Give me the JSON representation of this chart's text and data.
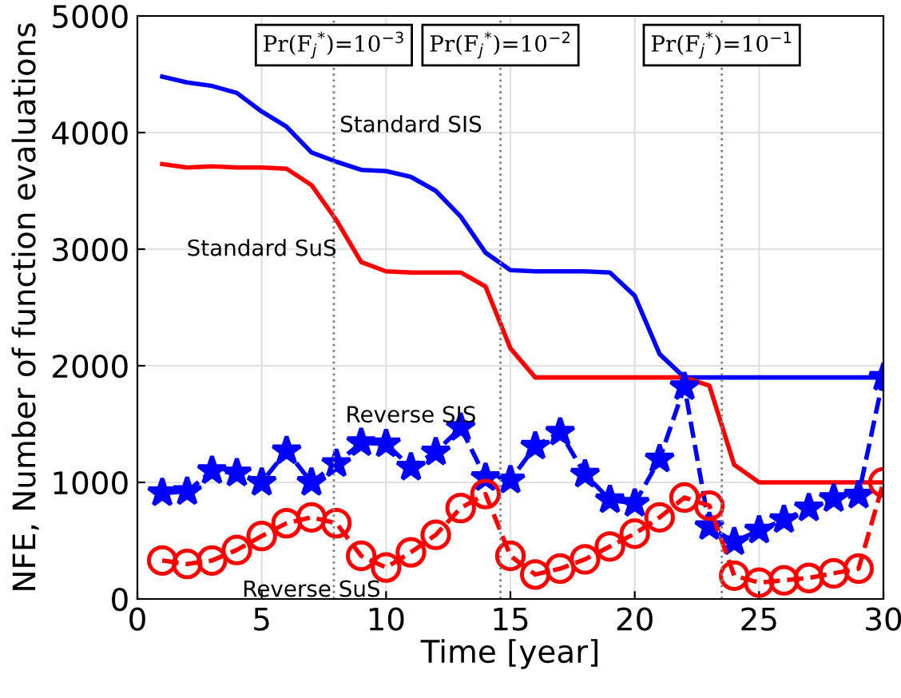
{
  "chart_data": {
    "type": "line",
    "xlabel": "Time [year]",
    "ylabel": "NFE, Number of function evaluations",
    "x": [
      1,
      2,
      3,
      4,
      5,
      6,
      7,
      8,
      9,
      10,
      11,
      12,
      13,
      14,
      15,
      16,
      17,
      18,
      19,
      20,
      21,
      22,
      23,
      24,
      25,
      26,
      27,
      28,
      29,
      30
    ],
    "series": [
      {
        "name": "Standard SIS",
        "color": "#0000ff",
        "line_style": "solid",
        "marker": "none",
        "values": [
          4480,
          4430,
          4400,
          4340,
          4180,
          4050,
          3830,
          3750,
          3680,
          3670,
          3620,
          3500,
          3280,
          2970,
          2820,
          2810,
          2810,
          2810,
          2800,
          2600,
          2100,
          1900,
          1900,
          1900,
          1900,
          1900,
          1900,
          1900,
          1900,
          1900
        ]
      },
      {
        "name": "Standard SuS",
        "color": "#ff0000",
        "line_style": "solid",
        "marker": "none",
        "values": [
          3730,
          3700,
          3710,
          3700,
          3700,
          3690,
          3550,
          3250,
          2890,
          2810,
          2800,
          2800,
          2800,
          2680,
          2150,
          1900,
          1900,
          1900,
          1900,
          1900,
          1900,
          1900,
          1830,
          1150,
          1000,
          1000,
          1000,
          1000,
          1000,
          1000
        ]
      },
      {
        "name": "Reverse SIS",
        "color": "#0000ff",
        "line_style": "dashed",
        "marker": "star",
        "values": [
          910,
          920,
          1100,
          1080,
          1000,
          1270,
          1000,
          1160,
          1340,
          1330,
          1130,
          1260,
          1470,
          1040,
          1020,
          1310,
          1430,
          1070,
          850,
          820,
          1200,
          1820,
          620,
          490,
          590,
          680,
          780,
          860,
          890,
          1900
        ]
      },
      {
        "name": "Reverse SuS",
        "color": "#ff0000",
        "line_style": "dashed",
        "marker": "circle",
        "values": [
          330,
          300,
          330,
          420,
          540,
          650,
          700,
          650,
          370,
          270,
          400,
          550,
          780,
          900,
          370,
          210,
          260,
          340,
          450,
          560,
          700,
          870,
          800,
          200,
          140,
          160,
          180,
          220,
          260,
          1000
        ]
      }
    ],
    "annotations": [
      "Pr(F$_{j}$$^{*}$)=10$^{−3}$",
      "Pr(F$_{j}$$^{*}$)=10$^{−2}$",
      "Pr(F$_{j}$$^{*}$)=10$^{−1}$"
    ],
    "ref_lines": [
      {
        "axis": "x",
        "value": 7.9,
        "color": "#808080",
        "line_style": "dotted"
      },
      {
        "axis": "x",
        "value": 14.6,
        "color": "#808080",
        "line_style": "dotted"
      },
      {
        "axis": "x",
        "value": 23.5,
        "color": "#808080",
        "line_style": "dotted"
      }
    ],
    "xlim": [
      0,
      30
    ],
    "xticks": [
      0,
      5,
      10,
      15,
      20,
      25,
      30
    ],
    "ylim": [
      0,
      5000
    ],
    "yticks": [
      0,
      1000,
      2000,
      3000,
      4000,
      5000
    ],
    "grid": true,
    "legend": false
  }
}
